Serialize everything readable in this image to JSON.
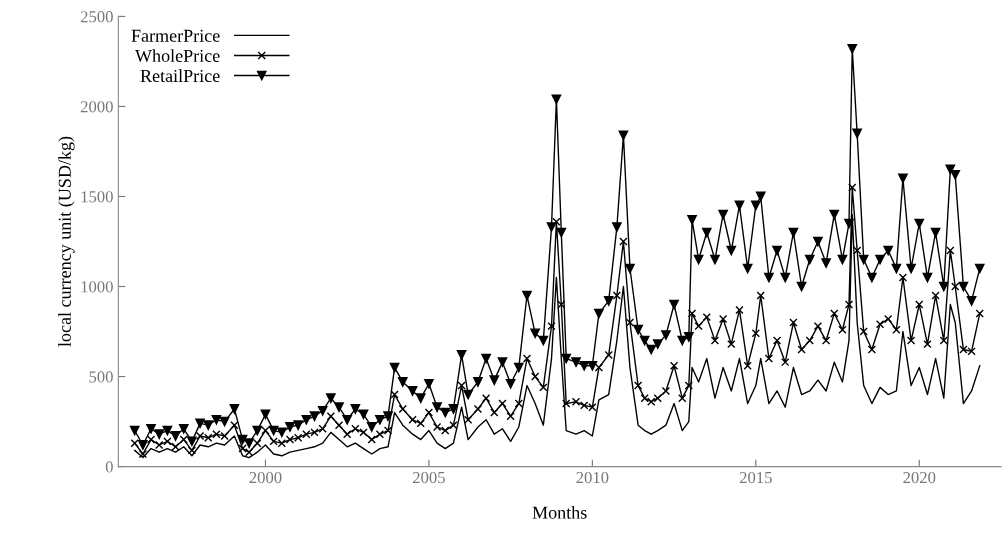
{
  "chart_data": {
    "type": "line",
    "xlabel": "Months",
    "ylabel": "local currency unit (USD/kg)",
    "x": [
      1996.0,
      1996.25,
      1996.5,
      1996.75,
      1997.0,
      1997.25,
      1997.5,
      1997.75,
      1998.0,
      1998.25,
      1998.5,
      1998.75,
      1999.05,
      1999.3,
      1999.5,
      1999.75,
      2000.0,
      2000.25,
      2000.5,
      2000.75,
      2001.0,
      2001.25,
      2001.5,
      2001.75,
      2002.0,
      2002.25,
      2002.5,
      2002.75,
      2003.0,
      2003.25,
      2003.5,
      2003.75,
      2003.95,
      2004.2,
      2004.5,
      2004.75,
      2005.0,
      2005.25,
      2005.5,
      2005.75,
      2006.0,
      2006.2,
      2006.5,
      2006.75,
      2007.0,
      2007.25,
      2007.5,
      2007.75,
      2008.0,
      2008.25,
      2008.5,
      2008.75,
      2008.9,
      2009.05,
      2009.2,
      2009.5,
      2009.75,
      2010.0,
      2010.2,
      2010.5,
      2010.75,
      2010.95,
      2011.15,
      2011.4,
      2011.6,
      2011.8,
      2012.0,
      2012.25,
      2012.5,
      2012.75,
      2012.95,
      2013.05,
      2013.25,
      2013.5,
      2013.75,
      2014.0,
      2014.25,
      2014.5,
      2014.75,
      2015.0,
      2015.15,
      2015.4,
      2015.65,
      2015.9,
      2016.15,
      2016.4,
      2016.65,
      2016.9,
      2017.15,
      2017.4,
      2017.65,
      2017.85,
      2017.95,
      2018.1,
      2018.3,
      2018.55,
      2018.8,
      2019.05,
      2019.3,
      2019.5,
      2019.75,
      2020.0,
      2020.25,
      2020.5,
      2020.75,
      2020.95,
      2021.1,
      2021.35,
      2021.6,
      2021.85
    ],
    "series": [
      {
        "name": "FarmerPrice",
        "color": "#000000",
        "marker": "none",
        "values": [
          90,
          50,
          100,
          80,
          100,
          80,
          110,
          60,
          120,
          110,
          130,
          120,
          170,
          60,
          50,
          80,
          120,
          70,
          60,
          80,
          90,
          100,
          110,
          130,
          190,
          150,
          110,
          130,
          100,
          70,
          100,
          110,
          300,
          230,
          180,
          150,
          200,
          130,
          100,
          130,
          330,
          150,
          220,
          260,
          180,
          210,
          140,
          220,
          450,
          350,
          230,
          600,
          1050,
          600,
          200,
          180,
          200,
          170,
          370,
          400,
          700,
          1000,
          550,
          230,
          200,
          180,
          200,
          230,
          350,
          200,
          250,
          550,
          470,
          600,
          380,
          550,
          420,
          600,
          350,
          450,
          600,
          350,
          420,
          330,
          550,
          400,
          420,
          480,
          420,
          580,
          470,
          700,
          1400,
          800,
          450,
          350,
          440,
          400,
          420,
          750,
          450,
          550,
          400,
          600,
          380,
          900,
          800,
          350,
          420,
          560
        ]
      },
      {
        "name": "WholePrice",
        "color": "#000000",
        "marker": "cross",
        "values": [
          130,
          70,
          150,
          120,
          140,
          110,
          150,
          90,
          170,
          160,
          180,
          170,
          230,
          100,
          80,
          130,
          200,
          140,
          130,
          150,
          160,
          180,
          190,
          210,
          280,
          230,
          180,
          210,
          190,
          150,
          180,
          200,
          400,
          320,
          260,
          240,
          300,
          220,
          200,
          230,
          450,
          260,
          320,
          380,
          300,
          350,
          280,
          350,
          600,
          500,
          440,
          780,
          1360,
          900,
          350,
          360,
          340,
          330,
          550,
          620,
          950,
          1250,
          800,
          450,
          380,
          360,
          380,
          420,
          560,
          380,
          450,
          850,
          780,
          830,
          700,
          820,
          680,
          870,
          560,
          740,
          950,
          600,
          700,
          580,
          800,
          650,
          700,
          780,
          700,
          850,
          760,
          900,
          1550,
          1200,
          750,
          650,
          790,
          820,
          760,
          1050,
          700,
          900,
          680,
          950,
          700,
          1200,
          1000,
          650,
          640,
          850
        ]
      },
      {
        "name": "RetailPrice",
        "color": "#000000",
        "marker": "triangle",
        "values": [
          200,
          120,
          210,
          180,
          200,
          170,
          210,
          140,
          240,
          230,
          260,
          250,
          320,
          150,
          130,
          200,
          290,
          200,
          190,
          220,
          230,
          260,
          280,
          310,
          380,
          330,
          260,
          320,
          290,
          220,
          260,
          280,
          550,
          470,
          420,
          380,
          460,
          330,
          300,
          320,
          620,
          400,
          470,
          600,
          480,
          580,
          460,
          550,
          950,
          740,
          700,
          1330,
          2040,
          1300,
          600,
          580,
          560,
          560,
          850,
          920,
          1330,
          1840,
          1100,
          760,
          700,
          650,
          680,
          730,
          900,
          700,
          720,
          1370,
          1150,
          1300,
          1150,
          1400,
          1200,
          1450,
          1100,
          1450,
          1500,
          1050,
          1200,
          1050,
          1300,
          1000,
          1150,
          1250,
          1130,
          1400,
          1150,
          1350,
          2320,
          1850,
          1150,
          1050,
          1150,
          1200,
          1100,
          1600,
          1100,
          1350,
          1050,
          1300,
          1000,
          1650,
          1620,
          1000,
          920,
          1100
        ]
      }
    ],
    "xlim": [
      1995.5,
      2022.5
    ],
    "xticks": [
      2000,
      2005,
      2010,
      2015,
      2020
    ],
    "ylim": [
      0,
      2500
    ],
    "yticks": [
      0,
      500,
      1000,
      1500,
      2000,
      2500
    ],
    "grid": false,
    "legend": "top left"
  }
}
